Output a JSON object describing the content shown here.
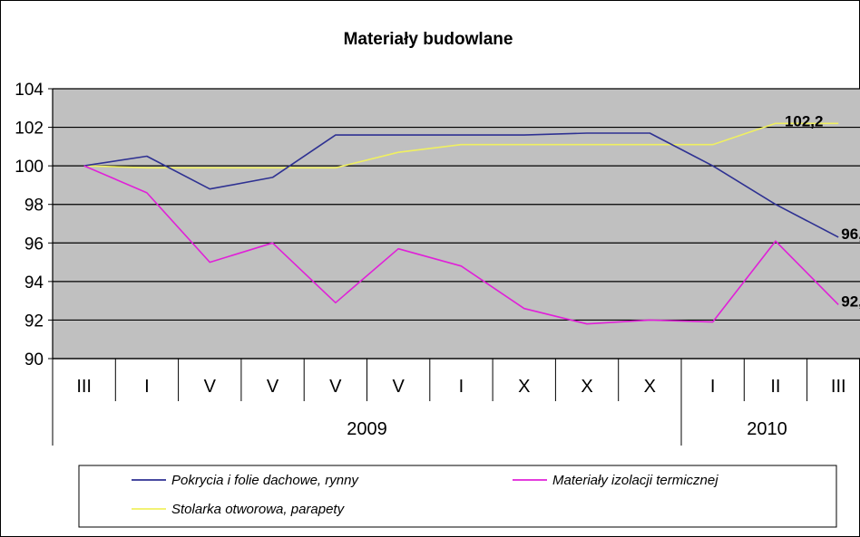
{
  "chart_data": {
    "type": "line",
    "title": "Materiały budowlane",
    "categories": [
      "III",
      "I",
      "V",
      "V",
      "V",
      "V",
      "I",
      "X",
      "X",
      "X",
      "I",
      "II",
      "III"
    ],
    "year_groups": [
      {
        "label": "2009",
        "from": 0,
        "to": 9
      },
      {
        "label": "2010",
        "from": 10,
        "to": 12
      }
    ],
    "ylim": [
      90,
      104
    ],
    "yticks": [
      90,
      92,
      94,
      96,
      98,
      100,
      102,
      104
    ],
    "grid": true,
    "plot_background": "#c0c0c0",
    "legend_position": "bottom",
    "series": [
      {
        "name": "Pokrycia i folie dachowe, rynny",
        "color": "#2e3192",
        "values": [
          100.0,
          100.5,
          98.8,
          99.4,
          101.6,
          101.6,
          101.6,
          101.6,
          101.7,
          101.7,
          100.0,
          98.0,
          96.3
        ],
        "end_label": "96,"
      },
      {
        "name": "Materiały izolacji termicznej",
        "color": "#e020d8",
        "values": [
          100.0,
          98.6,
          95.0,
          96.0,
          92.9,
          95.7,
          94.8,
          92.6,
          91.8,
          92.0,
          91.9,
          96.1,
          92.8
        ],
        "end_label": "92,"
      },
      {
        "name": "Stolarka otworowa, parapety",
        "color": "#f0f060",
        "values": [
          100.0,
          99.9,
          99.9,
          99.9,
          99.9,
          100.7,
          101.1,
          101.1,
          101.1,
          101.1,
          101.1,
          102.2,
          102.2
        ],
        "point_label": {
          "index": 11,
          "text": "102,2"
        }
      }
    ]
  }
}
